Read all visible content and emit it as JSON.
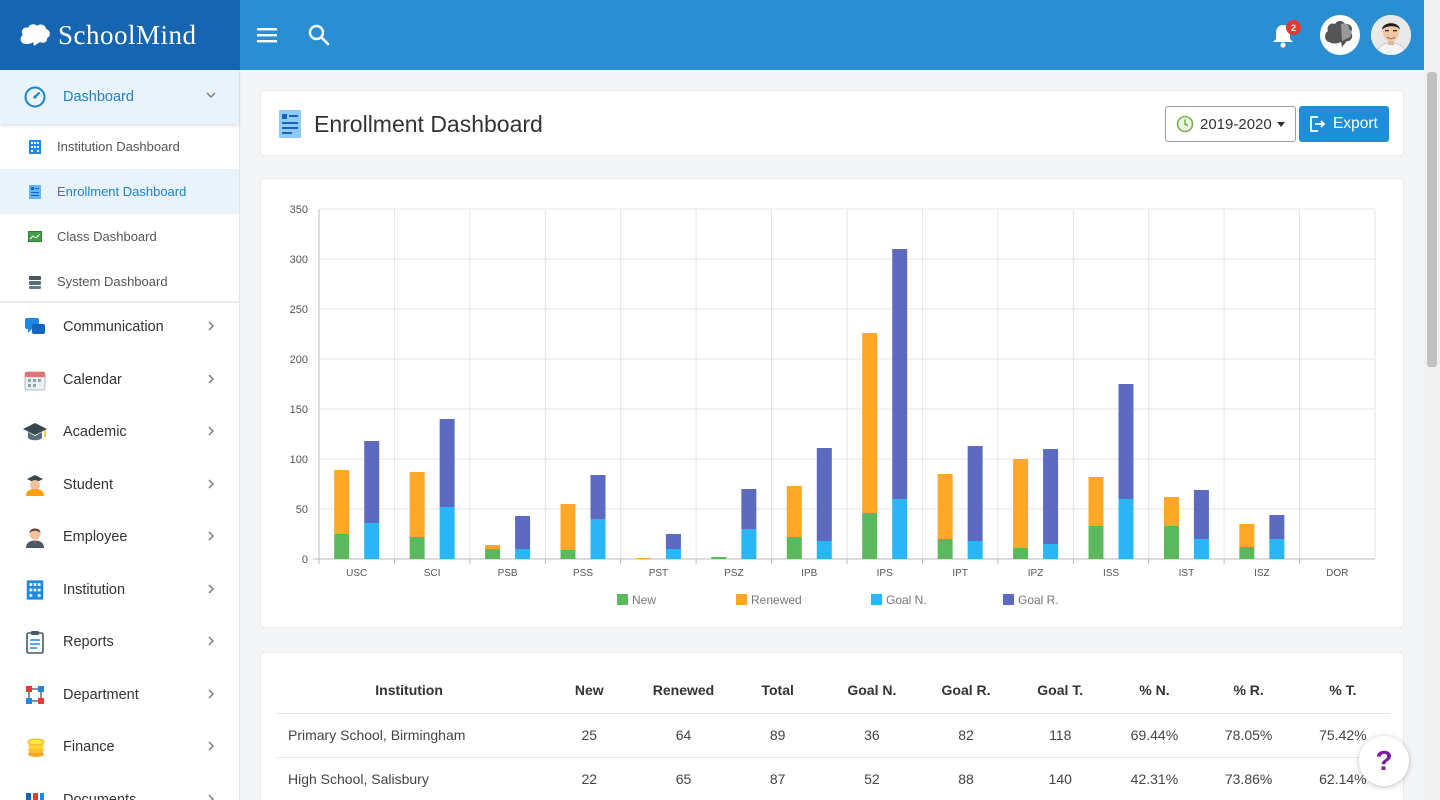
{
  "app": {
    "brand": "SchoolMind"
  },
  "header": {
    "notification_count": "2"
  },
  "sidebar": {
    "dashboard": {
      "label": "Dashboard"
    },
    "sub_items": [
      {
        "label": "Institution Dashboard",
        "icon": "building-icon"
      },
      {
        "label": "Enrollment Dashboard",
        "icon": "enrollment-icon"
      },
      {
        "label": "Class Dashboard",
        "icon": "class-board-icon"
      },
      {
        "label": "System Dashboard",
        "icon": "server-icon"
      }
    ],
    "items": [
      {
        "label": "Communication",
        "icon": "chat-icon"
      },
      {
        "label": "Calendar",
        "icon": "calendar-icon"
      },
      {
        "label": "Academic",
        "icon": "graduation-cap-icon"
      },
      {
        "label": "Student",
        "icon": "student-icon"
      },
      {
        "label": "Employee",
        "icon": "employee-icon"
      },
      {
        "label": "Institution",
        "icon": "building-icon"
      },
      {
        "label": "Reports",
        "icon": "clipboard-icon"
      },
      {
        "label": "Department",
        "icon": "org-chart-icon"
      },
      {
        "label": "Finance",
        "icon": "coins-icon"
      },
      {
        "label": "Documents",
        "icon": "documents-icon"
      }
    ]
  },
  "page": {
    "title": "Enrollment Dashboard",
    "year": "2019-2020",
    "export_label": "Export"
  },
  "chart_data": {
    "type": "bar",
    "categories": [
      "USC",
      "SCI",
      "PSB",
      "PSS",
      "PST",
      "PSZ",
      "IPB",
      "IPS",
      "IPT",
      "IPZ",
      "ISS",
      "IST",
      "ISZ",
      "DOR"
    ],
    "stack_groups": [
      {
        "series": [
          "New",
          "Renewed"
        ]
      },
      {
        "series": [
          "Goal N.",
          "Goal R."
        ]
      }
    ],
    "series": [
      {
        "name": "New",
        "color": "#5cb85c",
        "values": [
          25,
          22,
          10,
          9,
          0,
          2,
          22,
          46,
          20,
          11,
          33,
          33,
          12,
          0
        ]
      },
      {
        "name": "Renewed",
        "color": "#ffa726",
        "values": [
          64,
          65,
          4,
          46,
          1,
          0,
          51,
          180,
          65,
          89,
          49,
          29,
          23,
          0
        ]
      },
      {
        "name": "Goal N.",
        "color": "#29b6f6",
        "values": [
          36,
          52,
          10,
          40,
          10,
          30,
          18,
          60,
          18,
          15,
          60,
          20,
          20,
          0
        ]
      },
      {
        "name": "Goal R.",
        "color": "#5c6bc0",
        "values": [
          82,
          88,
          33,
          44,
          15,
          40,
          93,
          250,
          95,
          95,
          115,
          49,
          24,
          0
        ]
      }
    ],
    "ylim": [
      0,
      350
    ],
    "yticks": [
      0,
      50,
      100,
      150,
      200,
      250,
      300,
      350
    ],
    "grid": true,
    "legend_position": "bottom"
  },
  "table": {
    "headers": [
      "Institution",
      "New",
      "Renewed",
      "Total",
      "Goal N.",
      "Goal R.",
      "Goal T.",
      "% N.",
      "% R.",
      "% T."
    ],
    "rows": [
      [
        "Primary School, Birmingham",
        "25",
        "64",
        "89",
        "36",
        "82",
        "118",
        "69.44%",
        "78.05%",
        "75.42%"
      ],
      [
        "High School, Salisbury",
        "22",
        "65",
        "87",
        "52",
        "88",
        "140",
        "42.31%",
        "73.86%",
        "62.14%"
      ]
    ]
  },
  "help": {
    "label": "?"
  }
}
